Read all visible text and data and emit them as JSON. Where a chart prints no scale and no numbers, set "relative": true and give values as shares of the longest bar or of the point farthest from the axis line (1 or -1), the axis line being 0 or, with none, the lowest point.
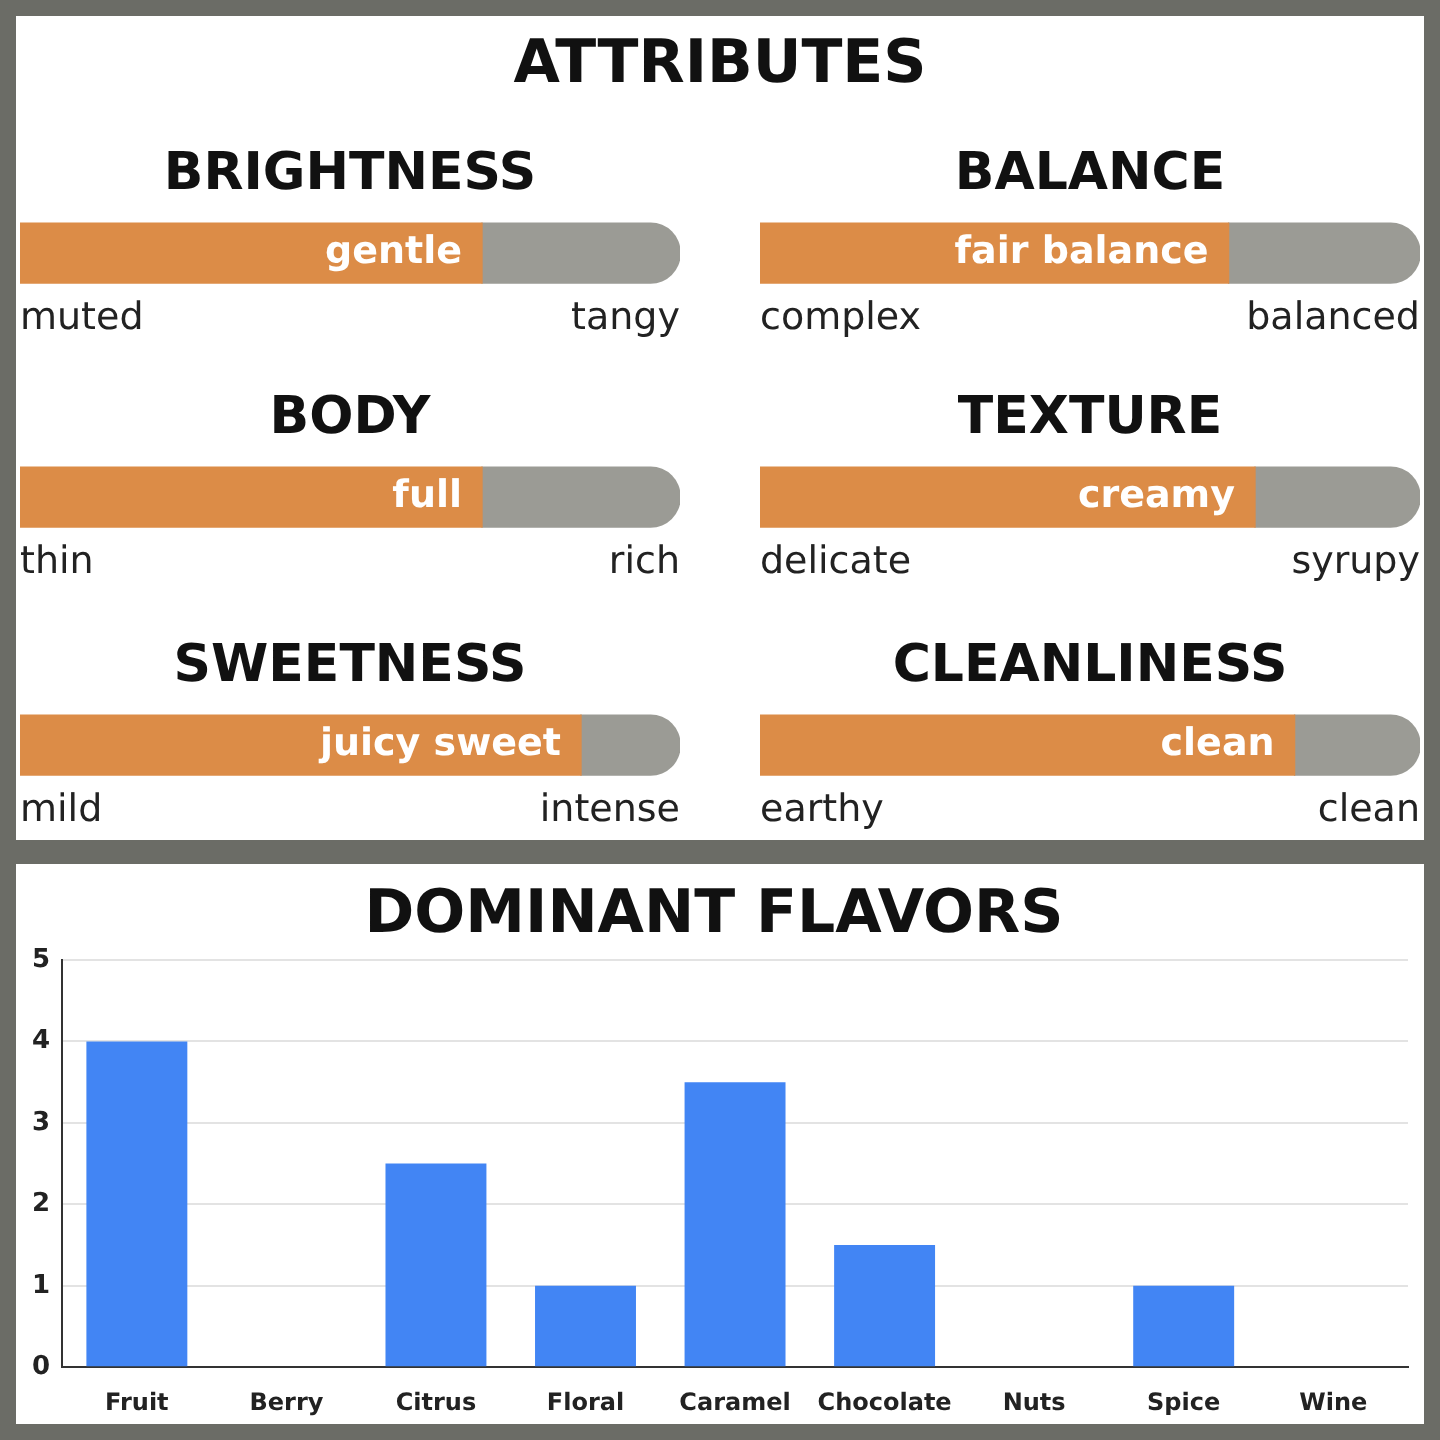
{
  "chart_data": [
    {
      "type": "other",
      "title": "ATTRIBUTES"
    },
    {
      "type": "bar",
      "orientation": "horizontal",
      "stacked": true,
      "relative": true,
      "title": "BRIGHTNESS",
      "categories": [
        null
      ],
      "series": [
        {
          "color": "#dc8c47",
          "values": [
            0.7
          ]
        },
        {
          "color": "#9b9b95",
          "values": [
            0.3
          ]
        }
      ],
      "annotations": [
        "muted",
        "tangy",
        {
          "text": "gentle",
          "x": 0.7
        }
      ]
    },
    {
      "type": "bar",
      "orientation": "horizontal",
      "stacked": true,
      "relative": true,
      "title": "BALANCE",
      "categories": [
        null
      ],
      "series": [
        {
          "color": "#dc8c47",
          "values": [
            0.71
          ]
        },
        {
          "color": "#9b9b95",
          "values": [
            0.29
          ]
        }
      ],
      "annotations": [
        "complex",
        "balanced",
        {
          "text": "fair balance",
          "x": 0.71
        }
      ]
    },
    {
      "type": "bar",
      "orientation": "horizontal",
      "stacked": true,
      "relative": true,
      "title": "BODY",
      "categories": [
        null
      ],
      "series": [
        {
          "color": "#dc8c47",
          "values": [
            0.7
          ]
        },
        {
          "color": "#9b9b95",
          "values": [
            0.3
          ]
        }
      ],
      "annotations": [
        "thin",
        "rich",
        {
          "text": "full",
          "x": 0.7
        }
      ]
    },
    {
      "type": "bar",
      "orientation": "horizontal",
      "stacked": true,
      "relative": true,
      "title": "TEXTURE",
      "categories": [
        null
      ],
      "series": [
        {
          "color": "#dc8c47",
          "values": [
            0.75
          ]
        },
        {
          "color": "#9b9b95",
          "values": [
            0.25
          ]
        }
      ],
      "annotations": [
        "delicate",
        "syrupy",
        {
          "text": "creamy",
          "x": 0.75
        }
      ]
    },
    {
      "type": "bar",
      "orientation": "horizontal",
      "stacked": true,
      "relative": true,
      "title": "SWEETNESS",
      "categories": [
        null
      ],
      "series": [
        {
          "color": "#dc8c47",
          "values": [
            0.85
          ]
        },
        {
          "color": "#9b9b95",
          "values": [
            0.15
          ]
        }
      ],
      "annotations": [
        "mild",
        "intense",
        {
          "text": "juicy sweet",
          "x": 0.85
        }
      ]
    },
    {
      "type": "bar",
      "orientation": "horizontal",
      "stacked": true,
      "relative": true,
      "title": "CLEANLINESS",
      "categories": [
        null
      ],
      "series": [
        {
          "color": "#dc8c47",
          "values": [
            0.81
          ]
        },
        {
          "color": "#9b9b95",
          "values": [
            0.19
          ]
        }
      ],
      "annotations": [
        "earthy",
        "clean",
        {
          "text": "clean",
          "x": 0.81
        }
      ]
    },
    {
      "type": "bar",
      "title": "DOMINANT FLAVORS",
      "categories": [
        "Fruit",
        "Berry",
        "Citrus",
        "Floral",
        "Caramel",
        "Chocolate",
        "Nuts",
        "Spice",
        "Wine"
      ],
      "values": [
        4,
        0,
        2.5,
        1,
        3.5,
        1.5,
        0,
        1,
        0
      ],
      "color": "#4285f4",
      "ylim": [
        0,
        5
      ],
      "yticks": [
        0,
        1,
        2,
        3,
        4,
        5
      ],
      "grid": "y"
    }
  ]
}
